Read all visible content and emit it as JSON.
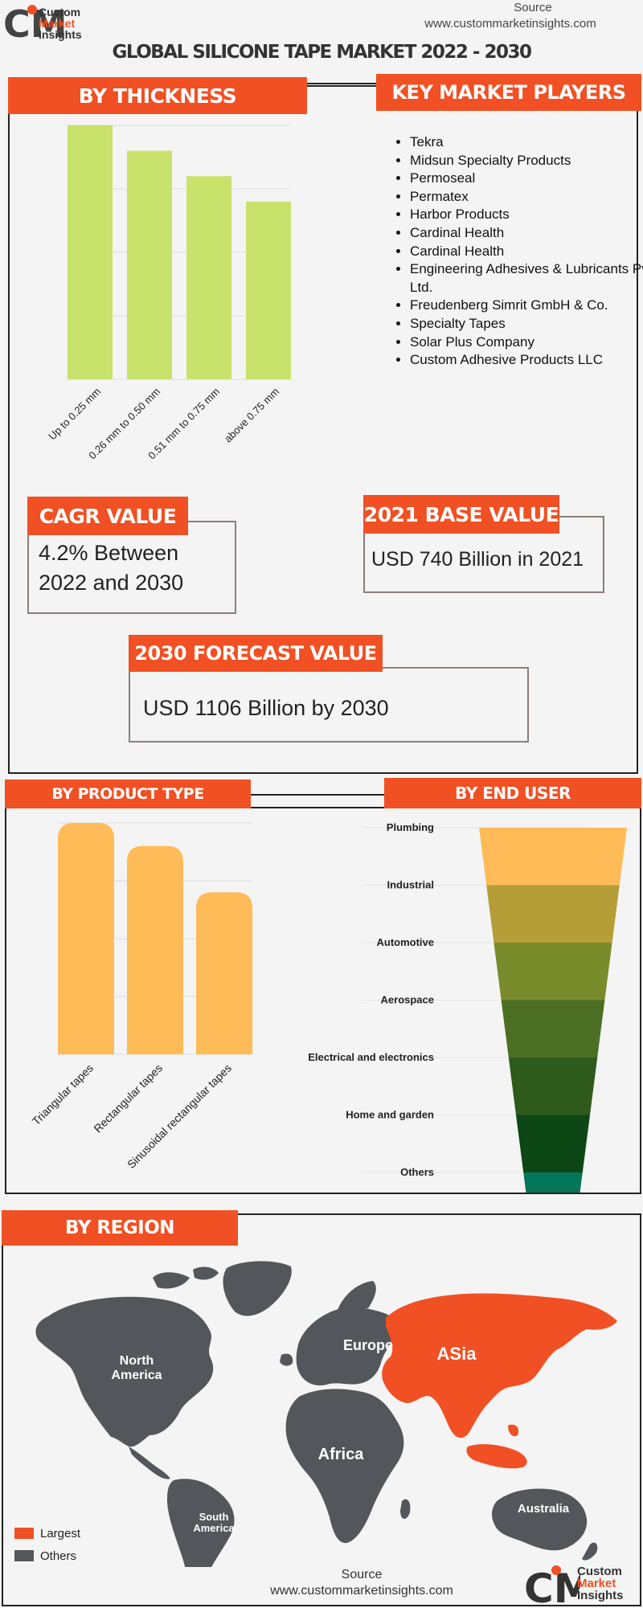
{
  "header": {
    "logo_line1": "Custom",
    "logo_line2": "Market",
    "logo_line3": "Insights",
    "source_label": "Source",
    "source_url": "www.custommarketinsights.com",
    "title": "GLOBAL SILICONE TAPE MARKET 2022 - 2030"
  },
  "thickness": {
    "heading": "BY THICKNESS"
  },
  "key_players": {
    "heading": "KEY MARKET PLAYERS",
    "items": [
      "Tekra",
      "Midsun Specialty Products",
      "Permoseal",
      "Permatex",
      "Harbor Products",
      "Cardinal Health",
      "Cardinal Health",
      "Engineering Adhesives & Lubricants Pvt. Ltd.",
      "Freudenberg Simrit GmbH & Co.",
      "Specialty Tapes",
      "Solar Plus Company",
      "Custom Adhesive Products LLC"
    ]
  },
  "cagr": {
    "heading": "CAGR VALUE",
    "value": "4.2% Between 2022 and 2030"
  },
  "base": {
    "heading": "2021 BASE VALUE",
    "value": "USD 740 Billion in 2021"
  },
  "forecast": {
    "heading": "2030 FORECAST  VALUE",
    "value": "USD 1106 Billion by 2030"
  },
  "product_type": {
    "heading": "BY  PRODUCT TYPE"
  },
  "end_user": {
    "heading": "BY  END USER"
  },
  "region": {
    "heading": "BY REGION",
    "labels": {
      "north_america": "North America",
      "south_america": "South America",
      "europe": "Europe",
      "asia": "ASia",
      "africa": "Africa",
      "australia": "Australia"
    },
    "legend": [
      {
        "label": "Largest",
        "color": "#f05023"
      },
      {
        "label": "Others",
        "color": "#53565a"
      }
    ]
  },
  "footer": {
    "source_label": "Source",
    "source_url": "www.custommarketinsights.com",
    "logo_line1": "Custom",
    "logo_line2": "Market",
    "logo_line3": "Insights"
  },
  "colors": {
    "accent": "#f05023",
    "thickness_bar": "#c8e26b",
    "product_bar": "#ffbb57",
    "map_other": "#53565a",
    "map_largest": "#f05023"
  },
  "chart_data": [
    {
      "type": "bar",
      "title": "BY THICKNESS",
      "categories": [
        "Up to 0.25 mm",
        "0.26 mm to 0.50 mm",
        "0.51 mm to 0.75 mm",
        "above 0.75 mm"
      ],
      "values": [
        100,
        90,
        80,
        70
      ],
      "ylim": [
        0,
        100
      ],
      "grid": true,
      "legend": "none"
    },
    {
      "type": "bar",
      "title": "BY  PRODUCT TYPE",
      "categories": [
        "Triangular tapes",
        "Rectangular tapes",
        "Sinusoidal rectangular tapes"
      ],
      "values": [
        100,
        90,
        70
      ],
      "ylim": [
        0,
        100
      ],
      "grid": true,
      "legend": "none"
    },
    {
      "type": "funnel",
      "title": "BY  END USER",
      "categories": [
        "Plumbing",
        "Industrial",
        "Automotive",
        "Aerospace",
        "Electrical and electronics",
        "Home and garden",
        "Others"
      ],
      "values": [
        100,
        90,
        80,
        70,
        60,
        50,
        40
      ],
      "colors": [
        "#ffbb57",
        "#b59e38",
        "#7a8b2c",
        "#4d6f24",
        "#2e5a1c",
        "#0d4715",
        "#06765a"
      ]
    }
  ]
}
